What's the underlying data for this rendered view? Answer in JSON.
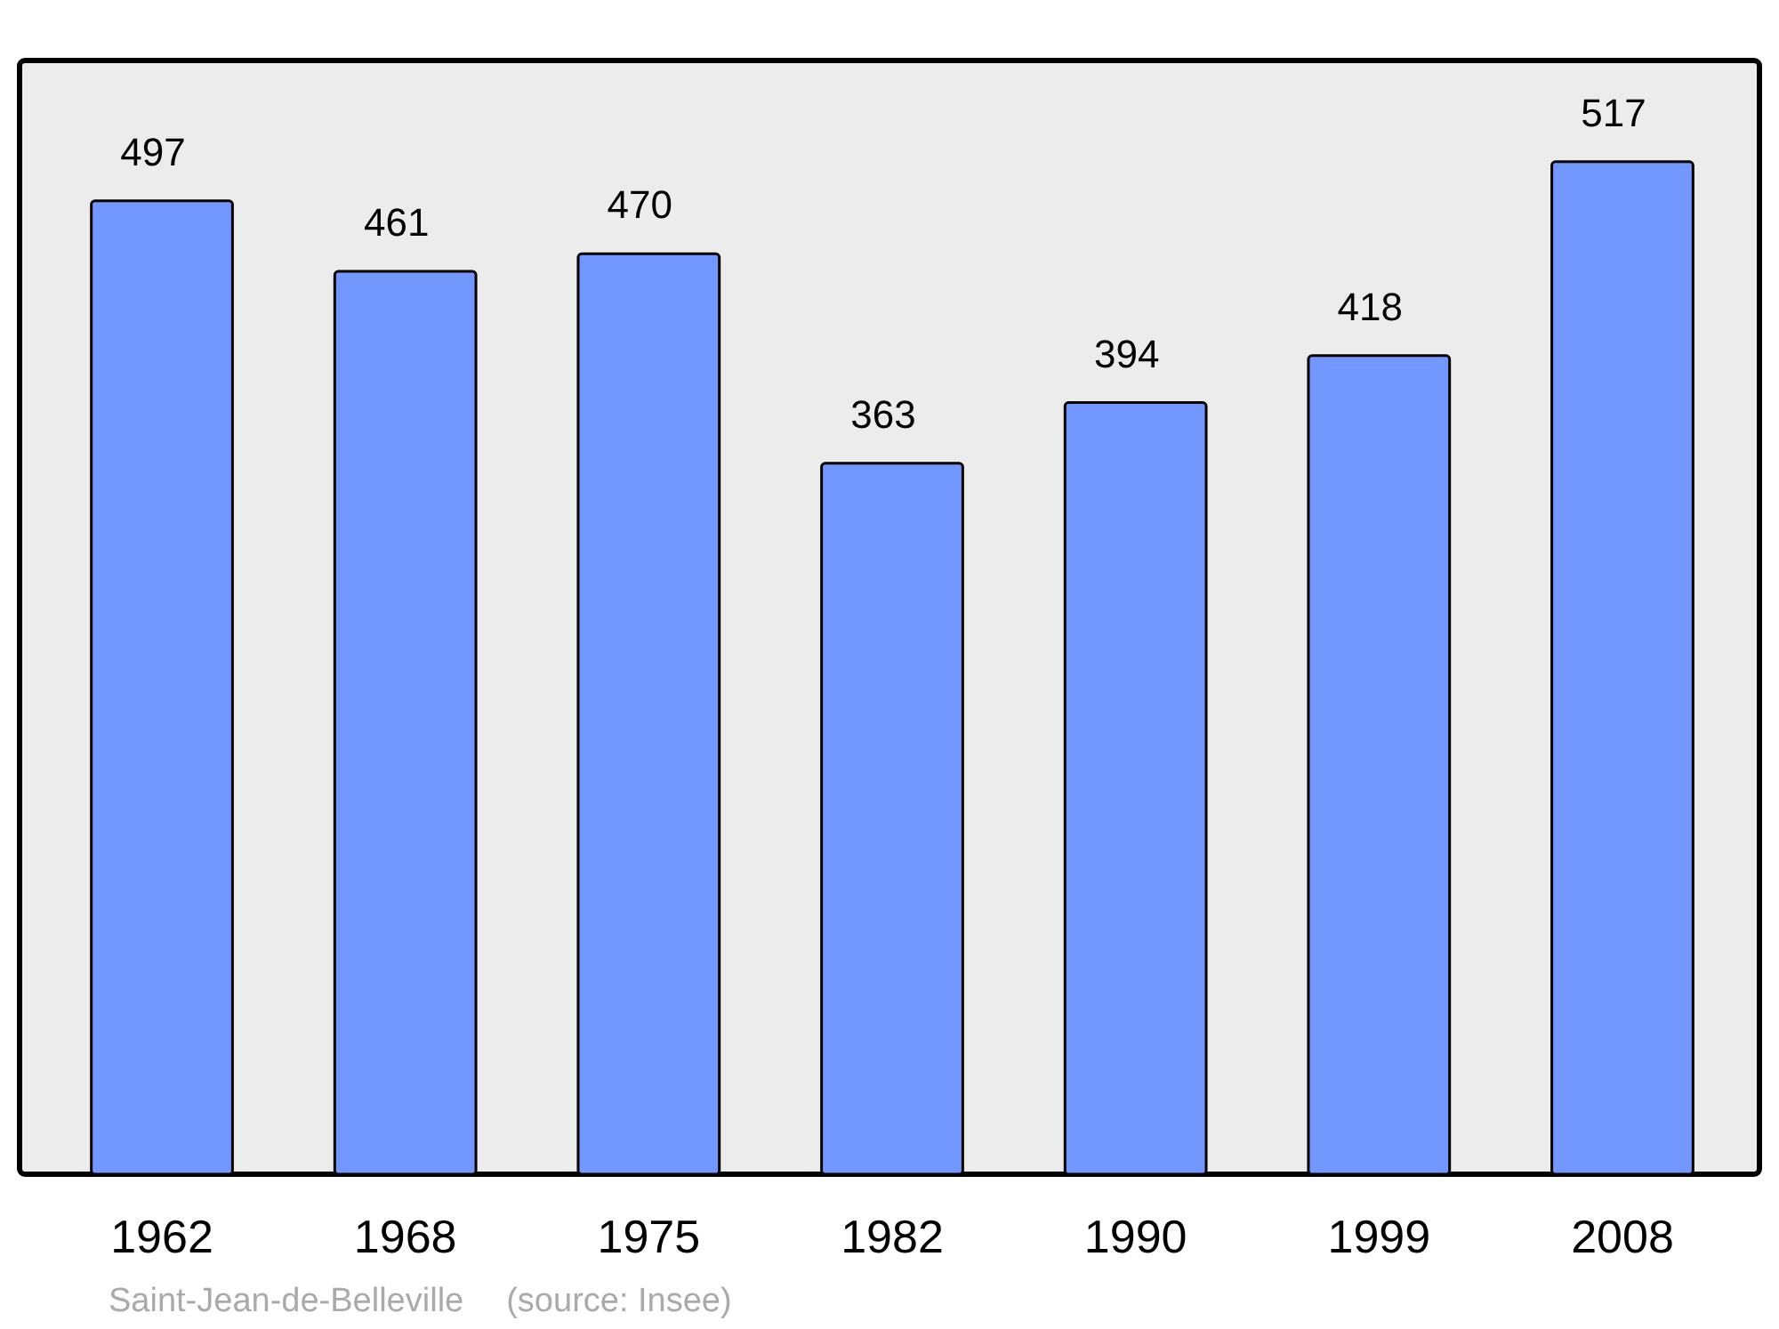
{
  "chart_data": {
    "type": "bar",
    "categories": [
      "1962",
      "1968",
      "1975",
      "1982",
      "1990",
      "1999",
      "2008"
    ],
    "values": [
      497,
      461,
      470,
      363,
      394,
      418,
      517
    ],
    "color": "#7297ff",
    "data_labels": true,
    "annotations": [
      "Saint-Jean-de-Belleville",
      "(source: Insee)"
    ]
  }
}
